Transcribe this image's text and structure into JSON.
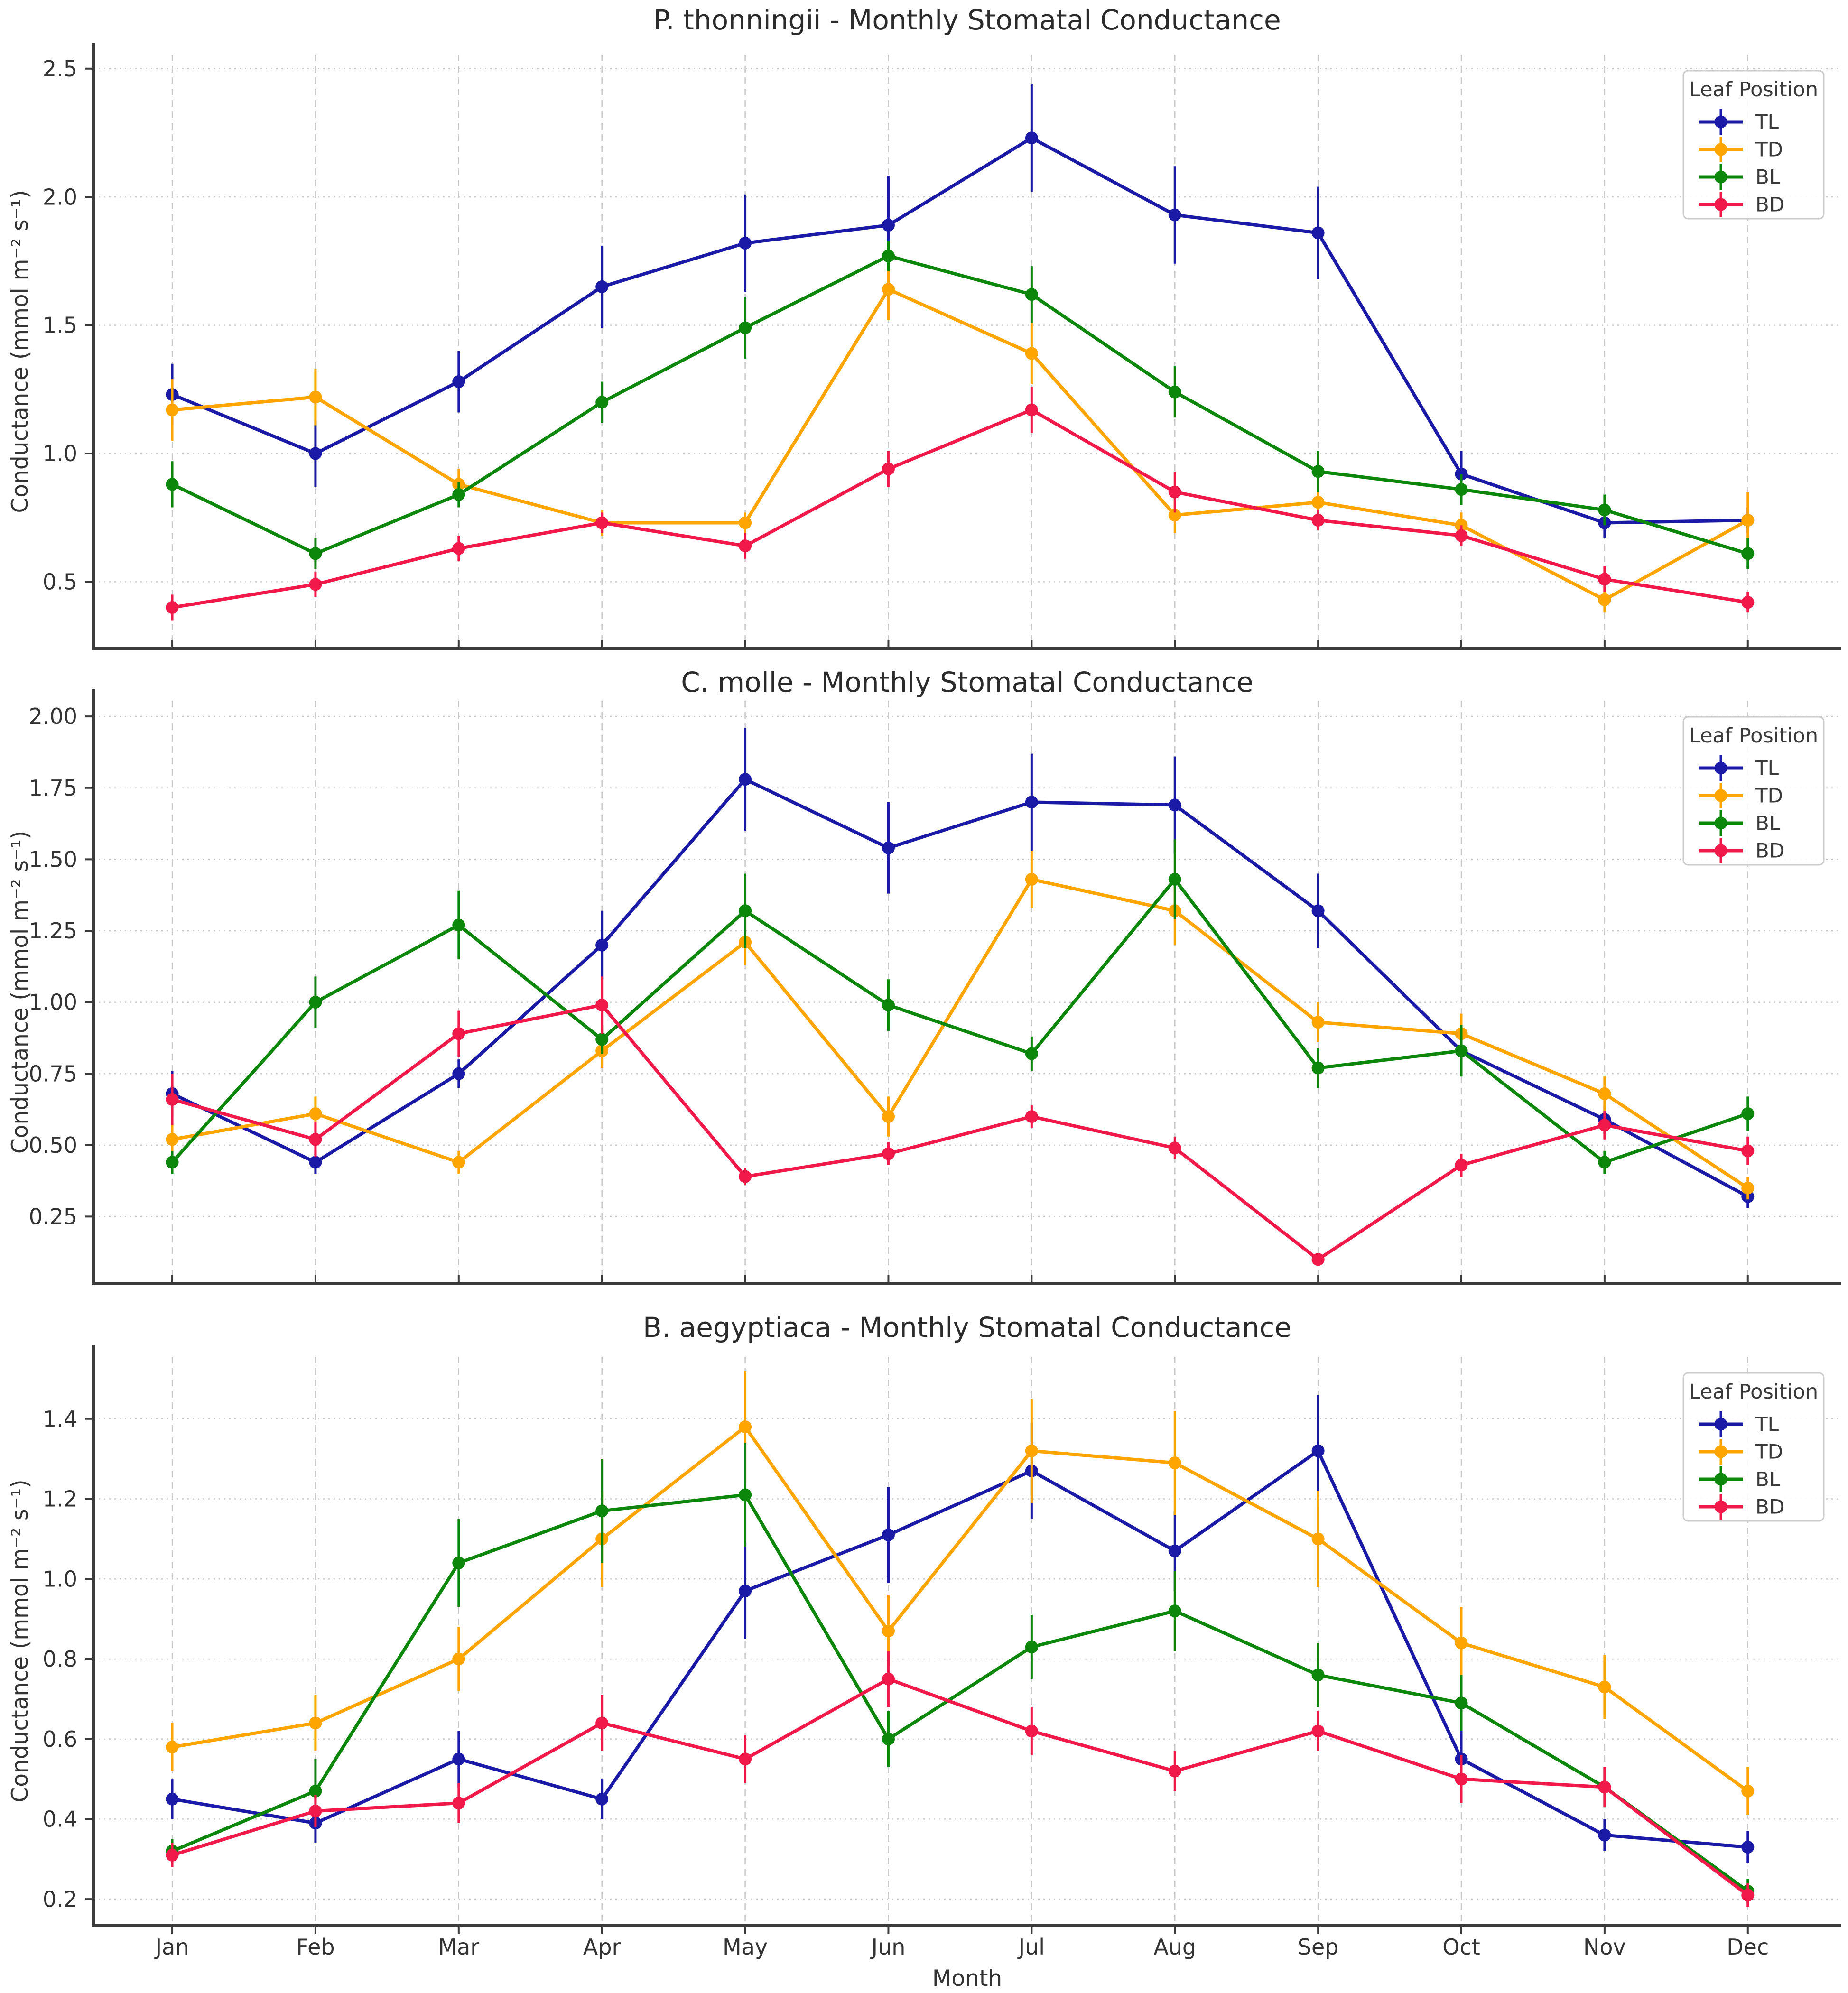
{
  "figure": {
    "x_axis_label": "Month",
    "y_axis_label": "Conductance (mmol m⁻² s⁻¹)",
    "legend_title": "Leaf Position",
    "series_names": [
      "TL",
      "TD",
      "BL",
      "BD"
    ],
    "colors": {
      "TL": "#1a1aa6",
      "TD": "#ffa502",
      "BL": "#0c870c",
      "BD": "#f1184a",
      "grid": "#c9c9c9",
      "spine": "#3b3b3b",
      "text": "#333333",
      "title": "#2b2b2b",
      "legend_border": "#cccccc",
      "legend_background": "#ffffff"
    }
  },
  "chart_data": [
    {
      "type": "line",
      "title": "P. thonningii - Monthly Stomatal Conductance",
      "xlabel": "",
      "ylabel": "Conductance (mmol m⁻² s⁻¹)",
      "categories": [
        "Jan",
        "Feb",
        "Mar",
        "Apr",
        "May",
        "Jun",
        "Jul",
        "Aug",
        "Sep",
        "Oct",
        "Nov",
        "Dec"
      ],
      "ylim": [
        0.24,
        2.555
      ],
      "yticks": [
        0.5,
        1.0,
        1.5,
        2.0,
        2.5
      ],
      "ytick_labels": [
        "0.5",
        "1.0",
        "1.5",
        "2.0",
        "2.5"
      ],
      "grid": true,
      "legend": {
        "title": "Leaf Position",
        "position": "upper right"
      },
      "series": [
        {
          "name": "TL",
          "color": "#1a1aa6",
          "values": [
            1.23,
            1.0,
            1.28,
            1.65,
            1.82,
            1.89,
            2.23,
            1.93,
            1.86,
            0.92,
            0.73,
            0.74
          ],
          "errors": [
            0.12,
            0.13,
            0.12,
            0.16,
            0.19,
            0.19,
            0.21,
            0.19,
            0.18,
            0.09,
            0.06,
            0.05
          ]
        },
        {
          "name": "TD",
          "color": "#ffa502",
          "values": [
            1.17,
            1.22,
            0.88,
            0.73,
            0.73,
            1.64,
            1.39,
            0.76,
            0.81,
            0.72,
            0.43,
            0.74
          ],
          "errors": [
            0.12,
            0.11,
            0.06,
            0.05,
            0.04,
            0.12,
            0.12,
            0.07,
            0.05,
            0.05,
            0.05,
            0.11
          ]
        },
        {
          "name": "BL",
          "color": "#0c870c",
          "values": [
            0.88,
            0.61,
            0.84,
            1.2,
            1.49,
            1.77,
            1.62,
            1.24,
            0.93,
            0.86,
            0.78,
            0.61
          ],
          "errors": [
            0.09,
            0.06,
            0.05,
            0.08,
            0.12,
            0.06,
            0.11,
            0.1,
            0.08,
            0.06,
            0.06,
            0.06
          ]
        },
        {
          "name": "BD",
          "color": "#f1184a",
          "values": [
            0.4,
            0.49,
            0.63,
            0.73,
            0.64,
            0.94,
            1.17,
            0.85,
            0.74,
            0.68,
            0.51,
            0.42
          ],
          "errors": [
            0.05,
            0.05,
            0.05,
            0.04,
            0.05,
            0.07,
            0.09,
            0.08,
            0.04,
            0.04,
            0.05,
            0.04
          ]
        }
      ]
    },
    {
      "type": "line",
      "title": "C. molle - Monthly Stomatal Conductance",
      "xlabel": "",
      "ylabel": "Conductance (mmol m⁻² s⁻¹)",
      "categories": [
        "Jan",
        "Feb",
        "Mar",
        "Apr",
        "May",
        "Jun",
        "Jul",
        "Aug",
        "Sep",
        "Oct",
        "Nov",
        "Dec"
      ],
      "ylim": [
        0.015,
        2.055
      ],
      "yticks": [
        0.25,
        0.5,
        0.75,
        1.0,
        1.25,
        1.5,
        1.75,
        2.0
      ],
      "ytick_labels": [
        "0.25",
        "0.50",
        "0.75",
        "1.00",
        "1.25",
        "1.50",
        "1.75",
        "2.00"
      ],
      "grid": true,
      "legend": {
        "title": "Leaf Position",
        "position": "upper right"
      },
      "series": [
        {
          "name": "TL",
          "color": "#1a1aa6",
          "values": [
            0.68,
            0.44,
            0.75,
            1.2,
            1.78,
            1.54,
            1.7,
            1.69,
            1.32,
            0.83,
            0.59,
            0.32
          ],
          "errors": [
            0.08,
            0.04,
            0.05,
            0.12,
            0.18,
            0.16,
            0.17,
            0.17,
            0.13,
            0.05,
            0.05,
            0.04
          ]
        },
        {
          "name": "TD",
          "color": "#ffa502",
          "values": [
            0.52,
            0.61,
            0.44,
            0.83,
            1.21,
            0.6,
            1.43,
            1.32,
            0.93,
            0.89,
            0.68,
            0.35
          ],
          "errors": [
            0.05,
            0.06,
            0.04,
            0.06,
            0.08,
            0.07,
            0.1,
            0.12,
            0.07,
            0.07,
            0.06,
            0.04
          ]
        },
        {
          "name": "BL",
          "color": "#0c870c",
          "values": [
            0.44,
            1.0,
            1.27,
            0.87,
            1.32,
            0.99,
            0.82,
            1.43,
            0.77,
            0.83,
            0.44,
            0.61
          ],
          "errors": [
            0.04,
            0.09,
            0.12,
            0.05,
            0.13,
            0.09,
            0.06,
            0.14,
            0.07,
            0.09,
            0.04,
            0.06
          ]
        },
        {
          "name": "BD",
          "color": "#f1184a",
          "values": [
            0.66,
            0.52,
            0.89,
            0.99,
            0.39,
            0.47,
            0.6,
            0.49,
            0.1,
            0.43,
            0.57,
            0.48
          ],
          "errors": [
            0.09,
            0.06,
            0.08,
            0.1,
            0.03,
            0.04,
            0.04,
            0.04,
            0.02,
            0.04,
            0.05,
            0.05
          ]
        }
      ]
    },
    {
      "type": "line",
      "title": "B. aegyptiaca - Monthly Stomatal Conductance",
      "xlabel": "Month",
      "ylabel": "Conductance (mmol m⁻² s⁻¹)",
      "categories": [
        "Jan",
        "Feb",
        "Mar",
        "Apr",
        "May",
        "Jun",
        "Jul",
        "Aug",
        "Sep",
        "Oct",
        "Nov",
        "Dec"
      ],
      "ylim": [
        0.135,
        1.555
      ],
      "yticks": [
        0.2,
        0.4,
        0.6,
        0.8,
        1.0,
        1.2,
        1.4
      ],
      "ytick_labels": [
        "0.2",
        "0.4",
        "0.6",
        "0.8",
        "1.0",
        "1.2",
        "1.4"
      ],
      "grid": true,
      "legend": {
        "title": "Leaf Position",
        "position": "upper right"
      },
      "series": [
        {
          "name": "TL",
          "color": "#1a1aa6",
          "values": [
            0.45,
            0.39,
            0.55,
            0.45,
            0.97,
            1.11,
            1.27,
            1.07,
            1.32,
            0.55,
            0.36,
            0.33
          ],
          "errors": [
            0.05,
            0.05,
            0.07,
            0.05,
            0.12,
            0.12,
            0.12,
            0.1,
            0.14,
            0.08,
            0.04,
            0.04
          ]
        },
        {
          "name": "TD",
          "color": "#ffa502",
          "values": [
            0.58,
            0.64,
            0.8,
            1.1,
            1.38,
            0.87,
            1.32,
            1.29,
            1.1,
            0.84,
            0.73,
            0.47
          ],
          "errors": [
            0.06,
            0.07,
            0.08,
            0.12,
            0.14,
            0.09,
            0.13,
            0.13,
            0.12,
            0.09,
            0.08,
            0.06
          ]
        },
        {
          "name": "BL",
          "color": "#0c870c",
          "values": [
            0.32,
            0.47,
            1.04,
            1.17,
            1.21,
            0.6,
            0.83,
            0.92,
            0.76,
            0.69,
            0.48,
            0.22
          ],
          "errors": [
            0.03,
            0.08,
            0.11,
            0.13,
            0.13,
            0.07,
            0.08,
            0.1,
            0.08,
            0.07,
            0.05,
            0.03
          ]
        },
        {
          "name": "BD",
          "color": "#f1184a",
          "values": [
            0.31,
            0.42,
            0.44,
            0.64,
            0.55,
            0.75,
            0.62,
            0.52,
            0.62,
            0.5,
            0.48,
            0.21
          ],
          "errors": [
            0.03,
            0.04,
            0.05,
            0.07,
            0.06,
            0.07,
            0.06,
            0.05,
            0.05,
            0.06,
            0.05,
            0.03
          ]
        }
      ]
    }
  ]
}
